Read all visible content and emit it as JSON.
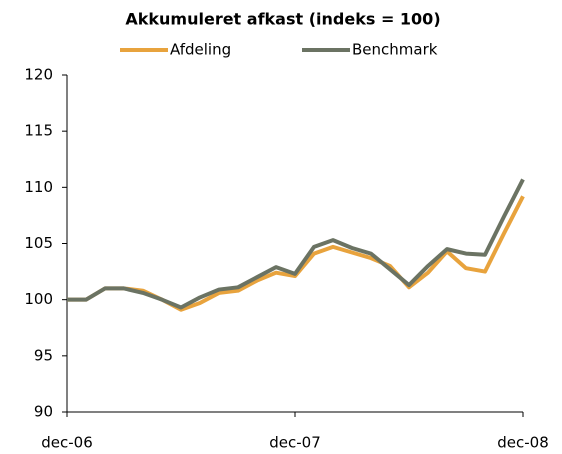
{
  "chart_data": {
    "type": "line",
    "title": "Akkumuleret afkast (indeks = 100)",
    "categories": [
      "dec-06",
      null,
      null,
      null,
      null,
      null,
      null,
      null,
      null,
      null,
      null,
      null,
      "dec-07",
      null,
      null,
      null,
      null,
      null,
      null,
      null,
      null,
      null,
      null,
      null,
      "dec-08"
    ],
    "series": [
      {
        "name": "Afdeling",
        "color": "#e8a33d",
        "values": [
          100,
          100,
          101,
          101,
          100.8,
          100,
          99.1,
          99.7,
          100.6,
          100.8,
          101.7,
          102.4,
          102.1,
          104.1,
          104.7,
          104.2,
          103.7,
          103,
          101.1,
          102.4,
          104.3,
          102.8,
          102.5,
          105.9,
          109.2
        ]
      },
      {
        "name": "Benchmark",
        "color": "#6b7363",
        "values": [
          100,
          100,
          101,
          101,
          100.6,
          100,
          99.3,
          100.2,
          100.9,
          101.1,
          102,
          102.9,
          102.3,
          104.7,
          105.3,
          104.6,
          104.1,
          102.7,
          101.3,
          103,
          104.5,
          104.1,
          104,
          107.4,
          110.7
        ]
      }
    ],
    "ylim": [
      90,
      120
    ],
    "yticks": [
      90,
      95,
      100,
      105,
      110,
      115,
      120
    ],
    "grid": false,
    "legend": "top"
  }
}
